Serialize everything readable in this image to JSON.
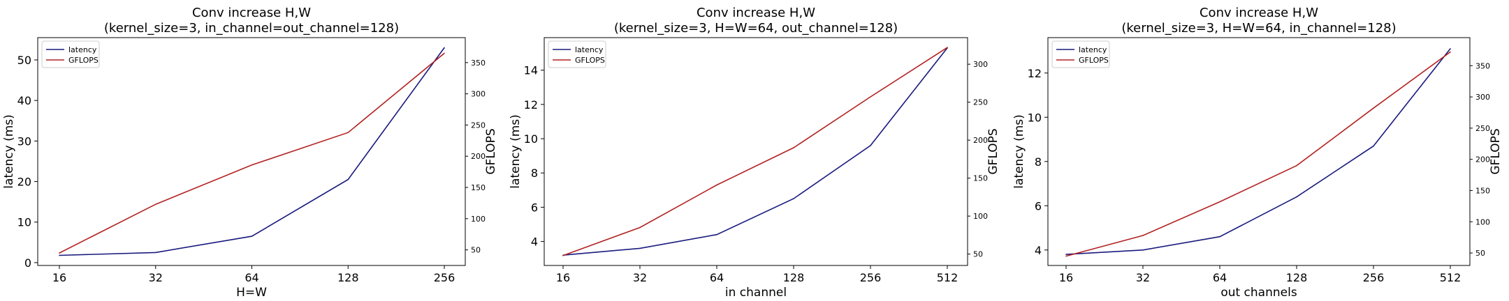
{
  "chart_data": [
    {
      "type": "line",
      "title_line1": "Conv increase H,W",
      "title_line2": "(kernel_size=3, in_channel=out_channel=128)",
      "xlabel": "H=W",
      "ylabel_left": "latency (ms)",
      "ylabel_right": "GFLOPS",
      "categories": [
        "16",
        "32",
        "64",
        "128",
        "256"
      ],
      "left_ticks": [
        0,
        10,
        20,
        30,
        40,
        50
      ],
      "left_ylim": [
        -0.7,
        55.5
      ],
      "right_ticks": [
        50,
        100,
        150,
        200,
        250,
        300,
        350
      ],
      "right_ylim": [
        25,
        390
      ],
      "legend": "top-left",
      "series": [
        {
          "name": "latency",
          "axis": "left",
          "color": "#1a1a7e",
          "values": [
            1.8,
            2.5,
            6.5,
            20.5,
            53.0
          ]
        },
        {
          "name": "GFLOPS",
          "axis": "right",
          "color": "#b22222",
          "values": [
            45,
            123,
            186,
            238,
            365
          ]
        }
      ]
    },
    {
      "type": "line",
      "title_line1": "Conv increase H,W",
      "title_line2": "(kernel_size=3, H=W=64, out_channel=128)",
      "xlabel": "in channel",
      "ylabel_left": "latency (ms)",
      "ylabel_right": "GFLOPS",
      "categories": [
        "16",
        "32",
        "64",
        "128",
        "256",
        "512"
      ],
      "left_ticks": [
        4,
        6,
        8,
        10,
        12,
        14
      ],
      "left_ylim": [
        2.6,
        15.9
      ],
      "right_ticks": [
        50,
        100,
        150,
        200,
        250,
        300
      ],
      "right_ylim": [
        35,
        335
      ],
      "legend": "top-left",
      "series": [
        {
          "name": "latency",
          "axis": "left",
          "color": "#1a1a7e",
          "values": [
            3.2,
            3.6,
            4.4,
            6.5,
            9.6,
            15.3
          ]
        },
        {
          "name": "GFLOPS",
          "axis": "right",
          "color": "#b22222",
          "values": [
            48,
            85,
            141,
            190,
            257,
            322
          ]
        }
      ]
    },
    {
      "type": "line",
      "title_line1": "Conv increase H,W",
      "title_line2": "(kernel_size=3, H=W=64, in_channel=128)",
      "xlabel": "out channels",
      "ylabel_left": "latency (ms)",
      "ylabel_right": "GFLOPS",
      "categories": [
        "16",
        "32",
        "64",
        "128",
        "256",
        "512"
      ],
      "left_ticks": [
        4,
        6,
        8,
        10,
        12
      ],
      "left_ylim": [
        3.3,
        13.6
      ],
      "right_ticks": [
        50,
        100,
        150,
        200,
        250,
        300,
        350
      ],
      "right_ylim": [
        30,
        395
      ],
      "legend": "top-left",
      "series": [
        {
          "name": "latency",
          "axis": "left",
          "color": "#1a1a7e",
          "values": [
            3.8,
            4.0,
            4.6,
            6.4,
            8.7,
            13.1
          ]
        },
        {
          "name": "GFLOPS",
          "axis": "right",
          "color": "#b22222",
          "values": [
            45,
            78,
            132,
            190,
            282,
            372
          ]
        }
      ]
    }
  ]
}
